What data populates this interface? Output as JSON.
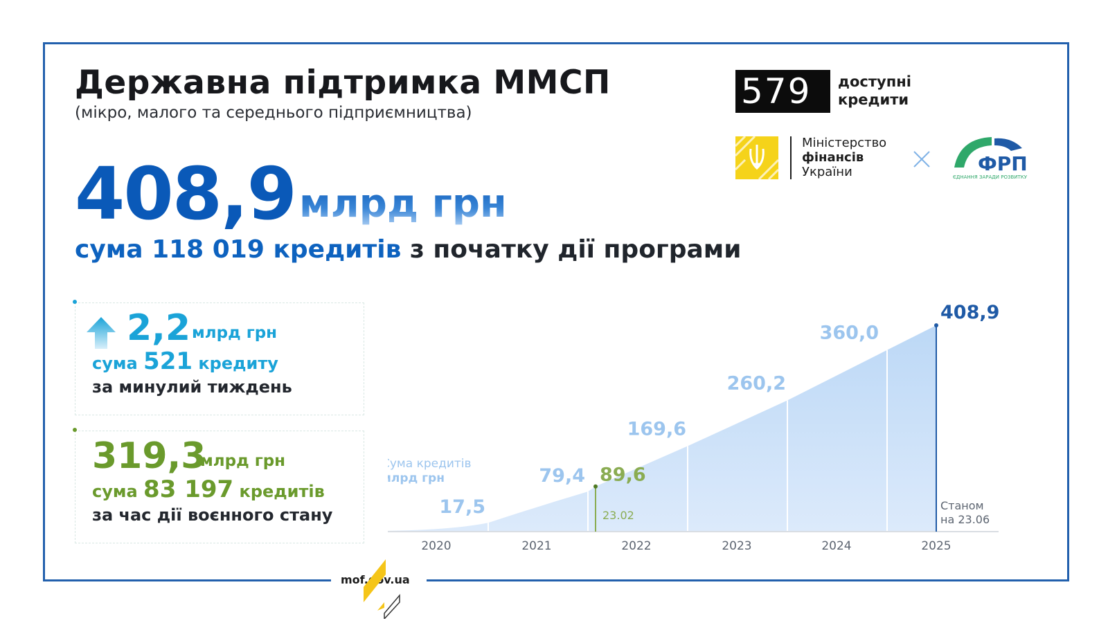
{
  "header": {
    "title": "Державна підтримка ММСП",
    "subtitle": "(мікро, малого та середнього підприємництва)"
  },
  "headline": {
    "amount": "408,9",
    "unit": "млрд грн",
    "summary_prefix": "сума",
    "summary_count": "118 019",
    "summary_mid": "кредитів",
    "summary_suffix": "з початку дії програми"
  },
  "week_card": {
    "amount": "2,2",
    "unit": "млрд грн",
    "prefix": "сума",
    "count": "521",
    "count_unit": "кредиту",
    "period": "за минулий тиждень",
    "icon": "arrow-up-icon",
    "color": "#1aa3d8"
  },
  "war_card": {
    "amount": "319,3",
    "unit": "млрд грн",
    "prefix": "сума",
    "count": "83 197",
    "count_unit": "кредитів",
    "period": "за час дії воєнного стану",
    "color": "#6a9a2c"
  },
  "logos": {
    "brand_digits": "579",
    "brand_text_1": "доступні",
    "brand_text_2": "кредити",
    "ministry_1": "Міністерство",
    "ministry_2": "фінансів",
    "ministry_3": "України",
    "frp": "ФРП",
    "frp_tagline": "ЄДНАННЯ ЗАРАДИ РОЗВИТКУ"
  },
  "footer": {
    "url": "mof.gov.ua"
  },
  "chart_data": {
    "type": "area",
    "ylabel_1": "Сума кредитів",
    "ylabel_2": "млрд грн",
    "x_labels": [
      "2020",
      "2021",
      "2022",
      "2023",
      "2024",
      "2025"
    ],
    "points": [
      {
        "x": "2020",
        "label": "17,5",
        "value": 17.5
      },
      {
        "x": "2021",
        "label": "79,4",
        "value": 79.4
      },
      {
        "x": "23.02.2022",
        "label": "89,6",
        "value": 89.6
      },
      {
        "x": "2022",
        "label": "169,6",
        "value": 169.6
      },
      {
        "x": "2023",
        "label": "260,2",
        "value": 260.2
      },
      {
        "x": "2024",
        "label": "360,0",
        "value": 360.0
      },
      {
        "x": "23.06.2025",
        "label": "408,9",
        "value": 408.9
      }
    ],
    "marker_war": "23.02",
    "marker_asof_1": "Станом",
    "marker_asof_2": "на 23.06",
    "colors": {
      "fill": "#c4ddf7",
      "labels": "#9cc5ee",
      "war": "#8aac52",
      "current": "#1f5aa6"
    }
  }
}
